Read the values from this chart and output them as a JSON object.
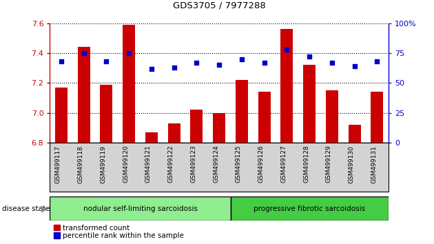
{
  "title": "GDS3705 / 7977288",
  "categories": [
    "GSM499117",
    "GSM499118",
    "GSM499119",
    "GSM499120",
    "GSM499121",
    "GSM499122",
    "GSM499123",
    "GSM499124",
    "GSM499125",
    "GSM499126",
    "GSM499127",
    "GSM499128",
    "GSM499129",
    "GSM499130",
    "GSM499131"
  ],
  "bar_values": [
    7.17,
    7.44,
    7.19,
    7.59,
    6.87,
    6.93,
    7.02,
    7.0,
    7.22,
    7.14,
    7.56,
    7.32,
    7.15,
    6.92,
    7.14
  ],
  "dot_values": [
    68,
    75,
    68,
    75,
    62,
    63,
    67,
    65,
    70,
    67,
    78,
    72,
    67,
    64,
    68
  ],
  "bar_color": "#cc0000",
  "dot_color": "#0000cc",
  "ylim_left": [
    6.8,
    7.6
  ],
  "ylim_right": [
    0,
    100
  ],
  "yticks_left": [
    6.8,
    7.0,
    7.2,
    7.4,
    7.6
  ],
  "yticks_right": [
    0,
    25,
    50,
    75,
    100
  ],
  "group1_label": "nodular self-limiting sarcoidosis",
  "group2_label": "progressive fibrotic sarcoidosis",
  "group1_count": 8,
  "group2_count": 7,
  "disease_state_label": "disease state",
  "legend_bar_label": "transformed count",
  "legend_dot_label": "percentile rank within the sample",
  "group1_color": "#90ee90",
  "group2_color": "#44cc44",
  "bar_bottom": 6.8
}
